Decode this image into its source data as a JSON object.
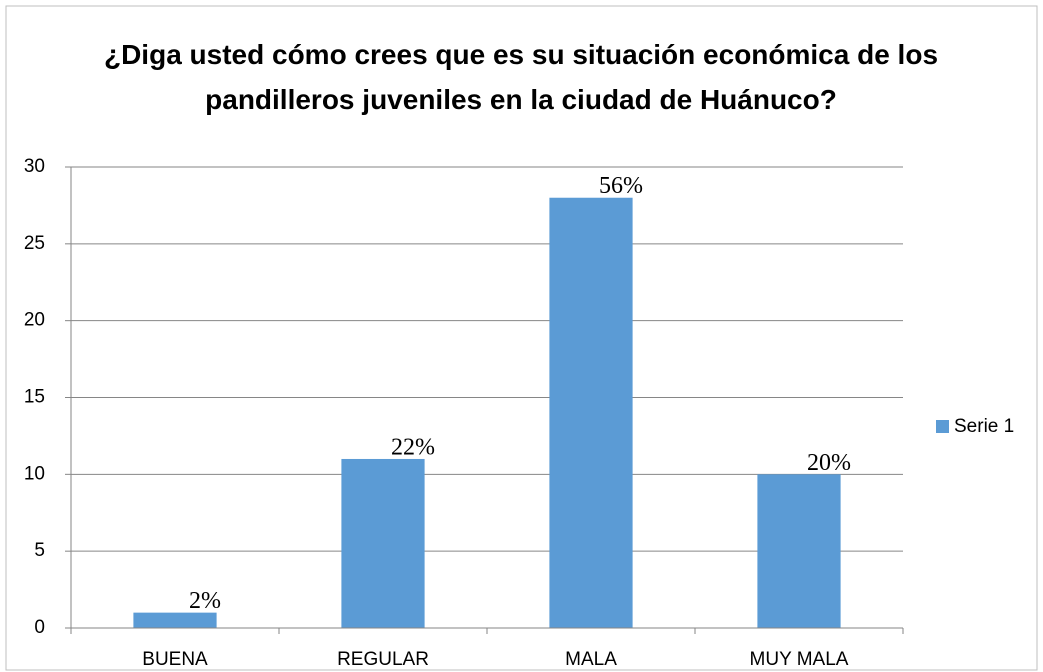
{
  "chart_data": {
    "type": "bar",
    "title": "¿Diga usted cómo crees que es su situación económica de los pandilleros juveniles en la ciudad de Huánuco?",
    "categories": [
      "BUENA",
      "REGULAR",
      "MALA",
      "MUY MALA"
    ],
    "series": [
      {
        "name": "Serie 1",
        "color": "#5b9bd5",
        "values": [
          1,
          11,
          28,
          10
        ]
      }
    ],
    "annotations": [
      "2%",
      "22%",
      "56%",
      "20%"
    ],
    "ylim": [
      0,
      30
    ],
    "yticks": [
      0,
      5,
      10,
      15,
      20,
      25,
      30
    ],
    "grid": true,
    "legend": "right"
  }
}
